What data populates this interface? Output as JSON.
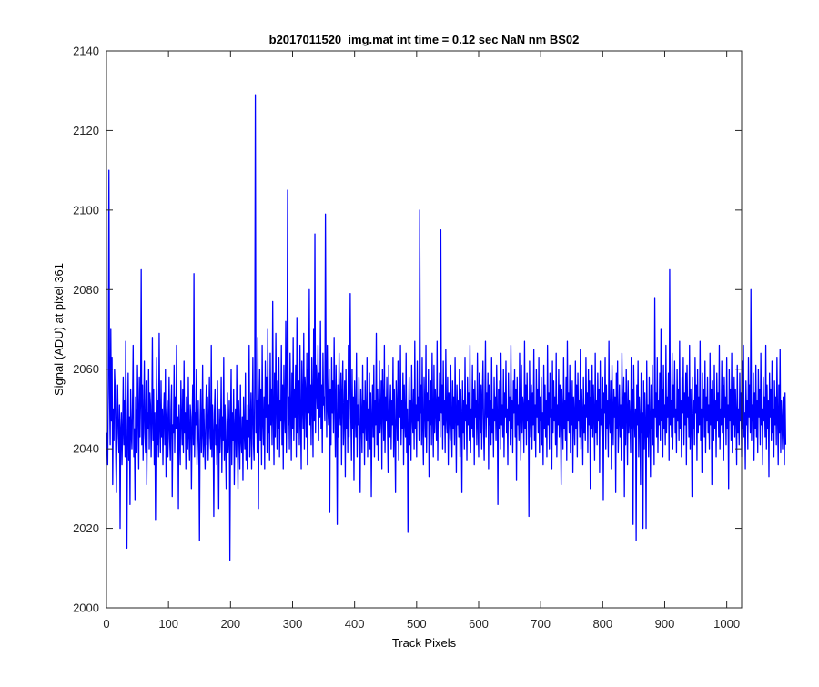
{
  "chart_data": {
    "type": "line",
    "title": "b2017011520_img.mat int time = 0.12 sec  NaN nm BS02",
    "xlabel": "Track Pixels",
    "ylabel": "Signal (ADU) at pixel 361",
    "xlim": [
      0,
      1024
    ],
    "ylim": [
      2000,
      2140
    ],
    "x_ticks": [
      0,
      100,
      200,
      300,
      400,
      500,
      600,
      700,
      800,
      900,
      1000
    ],
    "y_ticks": [
      2000,
      2020,
      2040,
      2060,
      2080,
      2100,
      2120,
      2140
    ],
    "grid": false,
    "series": [
      {
        "color": "#0000ff",
        "x_start": 1,
        "x_step": 1,
        "values": [
          2044,
          2036,
          2058,
          2110,
          2054,
          2041,
          2070,
          2047,
          2063,
          2031,
          2050,
          2042,
          2060,
          2055,
          2038,
          2029,
          2047,
          2056,
          2044,
          2039,
          2051,
          2020,
          2045,
          2049,
          2036,
          2044,
          2058,
          2041,
          2052,
          2038,
          2067,
          2046,
          2015,
          2043,
          2059,
          2037,
          2048,
          2026,
          2055,
          2044,
          2040,
          2051,
          2066,
          2038,
          2045,
          2027,
          2053,
          2047,
          2039,
          2061,
          2049,
          2035,
          2058,
          2043,
          2052,
          2085,
          2041,
          2056,
          2037,
          2048,
          2062,
          2044,
          2039,
          2057,
          2031,
          2049,
          2045,
          2060,
          2040,
          2054,
          2051,
          2038,
          2047,
          2068,
          2042,
          2055,
          2036,
          2049,
          2022,
          2046,
          2063,
          2041,
          2052,
          2038,
          2069,
          2045,
          2039,
          2057,
          2043,
          2050,
          2036,
          2048,
          2054,
          2041,
          2060,
          2033,
          2047,
          2052,
          2038,
          2045,
          2058,
          2042,
          2037,
          2050,
          2056,
          2028,
          2046,
          2044,
          2061,
          2039,
          2053,
          2045,
          2066,
          2040,
          2048,
          2025,
          2051,
          2043,
          2036,
          2057,
          2047,
          2041,
          2055,
          2039,
          2062,
          2044,
          2049,
          2035,
          2053,
          2046,
          2040,
          2058,
          2043,
          2037,
          2051,
          2048,
          2030,
          2045,
          2056,
          2041,
          2084,
          2038,
          2049,
          2046,
          2060,
          2036,
          2043,
          2052,
          2040,
          2017,
          2047,
          2055,
          2039,
          2044,
          2061,
          2038,
          2050,
          2042,
          2035,
          2048,
          2056,
          2041,
          2053,
          2037,
          2046,
          2058,
          2043,
          2040,
          2066,
          2038,
          2051,
          2044,
          2023,
          2049,
          2055,
          2041,
          2046,
          2036,
          2057,
          2043,
          2025,
          2050,
          2039,
          2045,
          2058,
          2034,
          2048,
          2042,
          2063,
          2037,
          2051,
          2040,
          2030,
          2046,
          2054,
          2039,
          2044,
          2052,
          2012,
          2047,
          2060,
          2036,
          2049,
          2042,
          2055,
          2031,
          2045,
          2050,
          2038,
          2061,
          2043,
          2030,
          2052,
          2046,
          2035,
          2056,
          2042,
          2039,
          2048,
          2032,
          2053,
          2044,
          2040,
          2059,
          2037,
          2047,
          2035,
          2051,
          2043,
          2066,
          2038,
          2045,
          2054,
          2035,
          2048,
          2063,
          2041,
          2037,
          2056,
          2129,
          2044,
          2052,
          2039,
          2068,
          2025,
          2049,
          2060,
          2042,
          2055,
          2036,
          2066,
          2047,
          2041,
          2053,
          2035,
          2062,
          2048,
          2058,
          2039,
          2070,
          2044,
          2051,
          2037,
          2064,
          2046,
          2055,
          2041,
          2077,
          2048,
          2036,
          2059,
          2043,
          2069,
          2050,
          2040,
          2057,
          2045,
          2063,
          2038,
          2052,
          2047,
          2066,
          2041,
          2056,
          2035,
          2061,
          2049,
          2044,
          2072,
          2039,
          2058,
          2105,
          2046,
          2053,
          2040,
          2064,
          2050,
          2037,
          2059,
          2045,
          2068,
          2042,
          2055,
          2048,
          2061,
          2038,
          2073,
          2044,
          2052,
          2057,
          2041,
          2066,
          2047,
          2035,
          2062,
          2051,
          2045,
          2069,
          2040,
          2058,
          2054,
          2043,
          2064,
          2036,
          2060,
          2049,
          2080,
          2046,
          2056,
          2041,
          2063,
          2052,
          2038,
          2070,
          2047,
          2094,
          2044,
          2061,
          2055,
          2050,
          2066,
          2042,
          2059,
          2048,
          2072,
          2045,
          2056,
          2039,
          2064,
          2051,
          2053,
          2047,
          2099,
          2058,
          2043,
          2066,
          2050,
          2046,
          2060,
          2024,
          2055,
          2041,
          2063,
          2049,
          2057,
          2044,
          2068,
          2052,
          2038,
          2061,
          2047,
          2021,
          2056,
          2043,
          2064,
          2050,
          2046,
          2059,
          2036,
          2054,
          2062,
          2041,
          2048,
          2057,
          2033,
          2060,
          2045,
          2052,
          2039,
          2066,
          2043,
          2055,
          2079,
          2048,
          2037,
          2060,
          2045,
          2053,
          2032,
          2057,
          2049,
          2043,
          2064,
          2038,
          2051,
          2046,
          2058,
          2041,
          2029,
          2055,
          2048,
          2039,
          2061,
          2044,
          2052,
          2036,
          2057,
          2047,
          2042,
          2063,
          2038,
          2050,
          2045,
          2059,
          2040,
          2054,
          2028,
          2048,
          2056,
          2043,
          2061,
          2038,
          2052,
          2046,
          2069,
          2041,
          2055,
          2037,
          2050,
          2062,
          2044,
          2048,
          2057,
          2035,
          2060,
          2051,
          2042,
          2066,
          2039,
          2053,
          2047,
          2058,
          2045,
          2034,
          2061,
          2049,
          2043,
          2056,
          2040,
          2052,
          2046,
          2063,
          2038,
          2055,
          2044,
          2029,
          2057,
          2050,
          2042,
          2062,
          2037,
          2054,
          2048,
          2066,
          2041,
          2052,
          2045,
          2059,
          2036,
          2056,
          2047,
          2043,
          2064,
          2039,
          2050,
          2019,
          2046,
          2058,
          2041,
          2052,
          2037,
          2061,
          2048,
          2044,
          2055,
          2040,
          2067,
          2045,
          2051,
          2038,
          2062,
          2047,
          2053,
          2042,
          2100,
          2049,
          2056,
          2041,
          2063,
          2045,
          2036,
          2058,
          2050,
          2043,
          2066,
          2039,
          2054,
          2047,
          2060,
          2033,
          2052,
          2046,
          2057,
          2041,
          2064,
          2048,
          2038,
          2061,
          2044,
          2055,
          2050,
          2042,
          2067,
          2037,
          2053,
          2047,
          2059,
          2043,
          2095,
          2049,
          2056,
          2040,
          2062,
          2046,
          2052,
          2039,
          2065,
          2048,
          2044,
          2058,
          2036,
          2054,
          2050,
          2042,
          2061,
          2047,
          2038,
          2057,
          2045,
          2053,
          2041,
          2063,
          2049,
          2034,
          2056,
          2046,
          2052,
          2043,
          2060,
          2038,
          2055,
          2048,
          2029,
          2057,
          2044,
          2052,
          2040,
          2063,
          2047,
          2051,
          2037,
          2058,
          2046,
          2054,
          2042,
          2066,
          2039,
          2050,
          2045,
          2061,
          2043,
          2055,
          2036,
          2057,
          2048,
          2052,
          2041,
          2064,
          2046,
          2038,
          2059,
          2049,
          2044,
          2056,
          2040,
          2053,
          2062,
          2045,
          2037,
          2051,
          2067,
          2043,
          2054,
          2048,
          2059,
          2035,
          2056,
          2046,
          2052,
          2041,
          2063,
          2044,
          2050,
          2038,
          2058,
          2047,
          2053,
          2042,
          2061,
          2049,
          2026,
          2055,
          2045,
          2057,
          2040,
          2064,
          2046,
          2051,
          2043,
          2060,
          2038,
          2054,
          2048,
          2062,
          2044,
          2050,
          2036,
          2059,
          2047,
          2053,
          2041,
          2066,
          2045,
          2052,
          2039,
          2057,
          2049,
          2060,
          2043,
          2055,
          2032,
          2058,
          2046,
          2051,
          2042,
          2064,
          2048,
          2037,
          2061,
          2044,
          2053,
          2050,
          2039,
          2067,
          2045,
          2056,
          2041,
          2059,
          2047,
          2052,
          2023,
          2062,
          2049,
          2043,
          2056,
          2040,
          2054,
          2046,
          2065,
          2042,
          2051,
          2038,
          2060,
          2048,
          2055,
          2044,
          2063,
          2039,
          2053,
          2047,
          2058,
          2041,
          2049,
          2036,
          2061,
          2045,
          2056,
          2043,
          2052,
          2038,
          2066,
          2046,
          2054,
          2040,
          2059,
          2048,
          2050,
          2035,
          2062,
          2044,
          2057,
          2047,
          2053,
          2041,
          2064,
          2038,
          2051,
          2046,
          2060,
          2043,
          2056,
          2048,
          2031,
          2055,
          2049,
          2040,
          2063,
          2045,
          2052,
          2042,
          2058,
          2037,
          2067,
          2047,
          2054,
          2044,
          2061,
          2039,
          2050,
          2046,
          2057,
          2034,
          2053,
          2048,
          2041,
          2062,
          2045,
          2056,
          2038,
          2059,
          2047,
          2052,
          2043,
          2065,
          2040,
          2055,
          2049,
          2036,
          2058,
          2044,
          2051,
          2042,
          2063,
          2048,
          2054,
          2039,
          2060,
          2046,
          2057,
          2030,
          2053,
          2045,
          2061,
          2043,
          2056,
          2048,
          2037,
          2064,
          2044,
          2052,
          2041,
          2059,
          2047,
          2055,
          2034,
          2062,
          2046,
          2050,
          2043,
          2058,
          2027,
          2054,
          2049,
          2063,
          2040,
          2056,
          2045,
          2052,
          2038,
          2067,
          2047,
          2044,
          2057,
          2035,
          2061,
          2050,
          2041,
          2055,
          2048,
          2053,
          2029,
          2059,
          2045,
          2062,
          2039,
          2047,
          2056,
          2043,
          2051,
          2037,
          2064,
          2048,
          2045,
          2058,
          2028,
          2054,
          2041,
          2060,
          2049,
          2036,
          2057,
          2044,
          2052,
          2047,
          2039,
          2063,
          2045,
          2055,
          2021,
          2061,
          2048,
          2043,
          2050,
          2017,
          2056,
          2046,
          2062,
          2038,
          2053,
          2047,
          2031,
          2059,
          2044,
          2049,
          2020,
          2057,
          2040,
          2054,
          2046,
          2020,
          2062,
          2043,
          2051,
          2038,
          2058,
          2047,
          2033,
          2056,
          2045,
          2061,
          2041,
          2050,
          2036,
          2078,
          2048,
          2054,
          2043,
          2063,
          2039,
          2052,
          2046,
          2059,
          2042,
          2070,
          2047,
          2055,
          2038,
          2061,
          2045,
          2051,
          2041,
          2066,
          2044,
          2053,
          2048,
          2059,
          2037,
          2085,
          2046,
          2052,
          2043,
          2064,
          2040,
          2056,
          2048,
          2062,
          2044,
          2050,
          2039,
          2060,
          2047,
          2055,
          2042,
          2067,
          2045,
          2052,
          2038,
          2058,
          2049,
          2063,
          2041,
          2054,
          2046,
          2059,
          2036,
          2061,
          2048,
          2053,
          2043,
          2066,
          2040,
          2055,
          2047,
          2028,
          2058,
          2045,
          2052,
          2041,
          2063,
          2049,
          2056,
          2037,
          2060,
          2044,
          2053,
          2046,
          2067,
          2042,
          2050,
          2034,
          2059,
          2048,
          2055,
          2043,
          2062,
          2039,
          2053,
          2047,
          2058,
          2044,
          2051,
          2040,
          2064,
          2046,
          2055,
          2031,
          2057,
          2049,
          2042,
          2061,
          2045,
          2052,
          2038,
          2059,
          2047,
          2054,
          2043,
          2066,
          2040,
          2050,
          2046,
          2062,
          2044,
          2056,
          2037,
          2058,
          2048,
          2053,
          2041,
          2063,
          2045,
          2051,
          2030,
          2060,
          2047,
          2055,
          2042,
          2064,
          2039,
          2052,
          2046,
          2058,
          2043,
          2055,
          2048,
          2036,
          2061,
          2044,
          2050,
          2041,
          2059,
          2047,
          2054,
          2038,
          2062,
          2045,
          2066,
          2043,
          2049,
          2035,
          2057,
          2046,
          2052,
          2040,
          2063,
          2048,
          2056,
          2044,
          2080,
          2042,
          2051,
          2047,
          2059,
          2037,
          2054,
          2045,
          2061,
          2043,
          2052,
          2039,
          2060,
          2048,
          2055,
          2041,
          2064,
          2046,
          2050,
          2036,
          2058,
          2047,
          2053,
          2043,
          2066,
          2040,
          2056,
          2045,
          2052,
          2033,
          2059,
          2048,
          2055,
          2042,
          2062,
          2044,
          2050,
          2038,
          2057,
          2046,
          2053,
          2041,
          2063,
          2048,
          2036,
          2056,
          2044,
          2065,
          2039,
          2052,
          2047,
          2040,
          2053,
          2045,
          2036,
          2054,
          2041
        ]
      }
    ]
  }
}
